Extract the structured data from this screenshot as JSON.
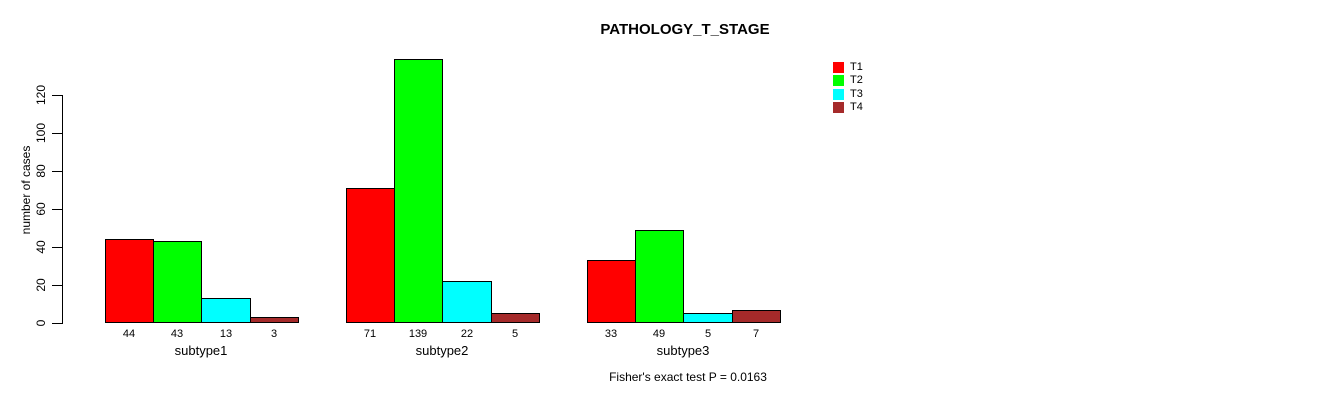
{
  "chart_data": {
    "type": "bar",
    "title": "PATHOLOGY_T_STAGE",
    "categories": [
      "subtype1",
      "subtype2",
      "subtype3"
    ],
    "series": [
      {
        "name": "T1",
        "color": "#ff0000",
        "values": [
          44,
          71,
          33
        ]
      },
      {
        "name": "T2",
        "color": "#00ff00",
        "values": [
          43,
          139,
          49
        ]
      },
      {
        "name": "T3",
        "color": "#00ffff",
        "values": [
          13,
          22,
          5
        ]
      },
      {
        "name": "T4",
        "color": "#a52a2a",
        "values": [
          3,
          5,
          7
        ]
      }
    ],
    "xlabel": "",
    "ylabel": "number of cases",
    "yticks": [
      0,
      20,
      40,
      60,
      80,
      100,
      120
    ],
    "ylim": [
      0,
      139
    ],
    "bar_value_labels": true,
    "grid": false,
    "legend": {
      "position": "topright",
      "entries": [
        "T1",
        "T2",
        "T3",
        "T4"
      ]
    },
    "annotation": "Fisher's exact test P = 0.0163"
  }
}
